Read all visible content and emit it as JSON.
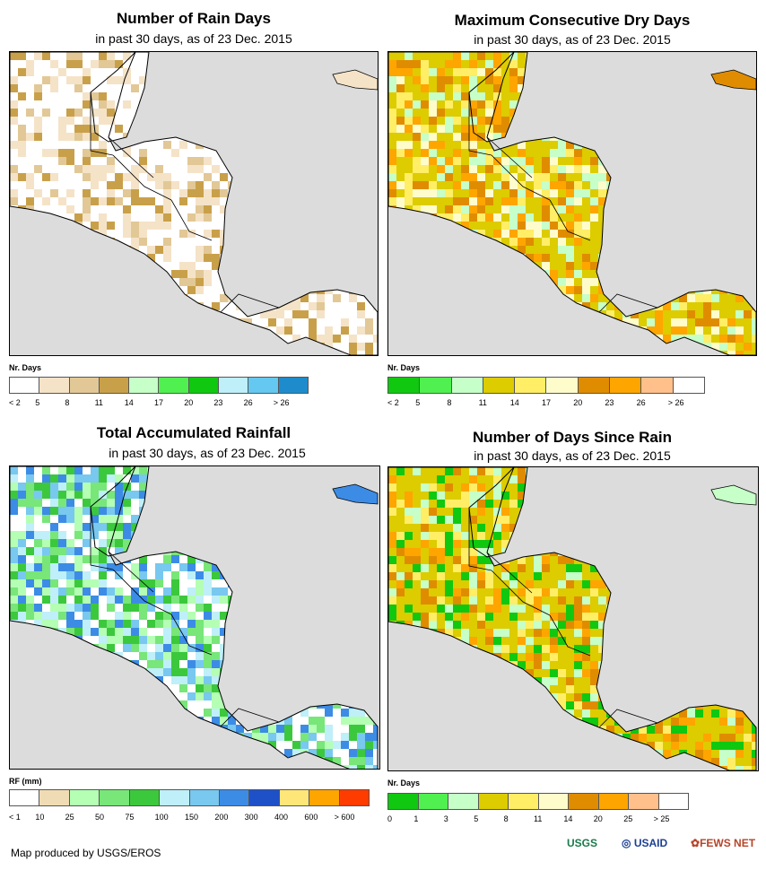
{
  "panels": [
    {
      "title": "Number of Rain Days",
      "subtitle": "in past 30 days, as of 23 Dec. 2015",
      "legend_title": "Nr. Days",
      "legend_colors": [
        "#ffffff",
        "#f5e3c8",
        "#e2c896",
        "#c9a04a",
        "#c6ffc8",
        "#50f050",
        "#10c810",
        "#bfeff8",
        "#64c8f0",
        "#1e8ccc"
      ],
      "legend_labels": [
        "< 2",
        "5",
        "8",
        "11",
        "14",
        "17",
        "20",
        "23",
        "26",
        "> 26"
      ]
    },
    {
      "title": "Maximum Consecutive Dry Days",
      "subtitle": "in past 30 days, as of 23 Dec. 2015",
      "legend_title": "Nr. Days",
      "legend_colors": [
        "#10c810",
        "#50f050",
        "#c6ffc8",
        "#dccc00",
        "#ffee66",
        "#fffccc",
        "#e08c00",
        "#ffa500",
        "#ffc08c",
        "#ffffff"
      ],
      "legend_labels": [
        "< 2",
        "5",
        "8",
        "11",
        "14",
        "17",
        "20",
        "23",
        "26",
        "> 26"
      ]
    },
    {
      "title": "Total Accumulated Rainfall",
      "subtitle": "in past 30 days, as of 23 Dec. 2015",
      "legend_title": "RF (mm)",
      "legend_colors": [
        "#ffffff",
        "#f0dcb4",
        "#b4ffb4",
        "#78e678",
        "#3cc83c",
        "#bfeff8",
        "#78c8f0",
        "#3c8ce6",
        "#1e50c8",
        "#ffe678",
        "#ffa500",
        "#ff3c00"
      ],
      "legend_labels": [
        "< 1",
        "10",
        "25",
        "50",
        "75",
        "100",
        "150",
        "200",
        "300",
        "400",
        "600",
        "> 600"
      ]
    },
    {
      "title": "Number of Days Since Rain",
      "subtitle": "in past 30 days, as of 23 Dec. 2015",
      "legend_title": "Nr. Days",
      "legend_colors": [
        "#10c810",
        "#50f050",
        "#c6ffc8",
        "#dccc00",
        "#ffee66",
        "#fffccc",
        "#e08c00",
        "#ffa500",
        "#ffc08c",
        "#ffffff"
      ],
      "legend_labels": [
        "0",
        "1",
        "3",
        "5",
        "8",
        "11",
        "14",
        "20",
        "25",
        "> 25"
      ]
    }
  ],
  "credit": "Map produced by USGS/EROS",
  "logos": [
    "USGS",
    "USAID",
    "FEWS NET"
  ],
  "colors": {
    "ocean": "#dcdcdc",
    "land_default": "#ffffff"
  }
}
